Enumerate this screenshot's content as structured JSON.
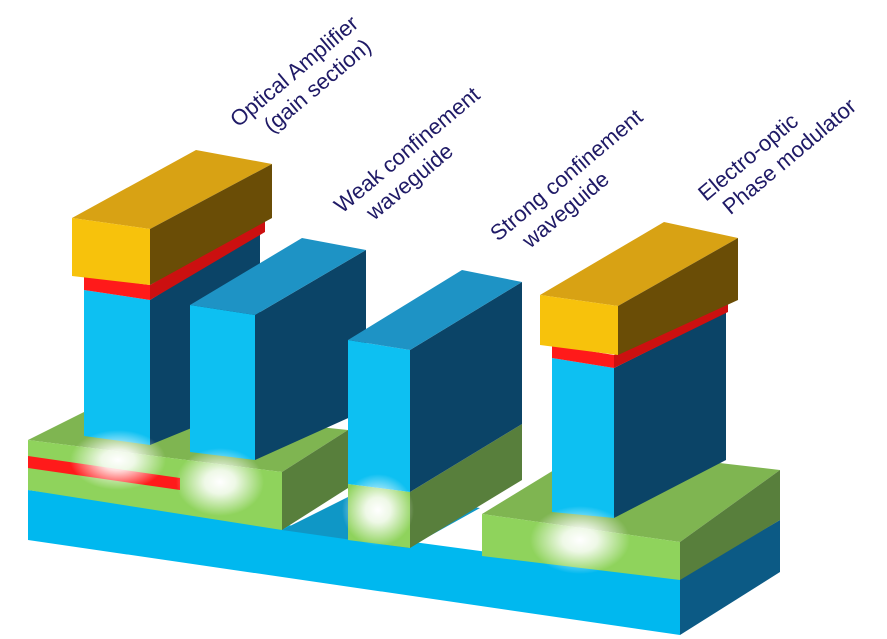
{
  "labels": {
    "amplifier_line1": "Optical Amplifier",
    "amplifier_line2": "(gain section)",
    "weak_line1": "Weak confinement",
    "weak_line2": "waveguide",
    "strong_line1": "Strong confinement",
    "strong_line2": "waveguide",
    "modulator_line1": "Electro-optic",
    "modulator_line2": "Phase modulator"
  },
  "colors": {
    "substrate_front": "#00b8ef",
    "substrate_top": "#0f97c6",
    "substrate_side": "#0c5a85",
    "green_front": "#8fd35c",
    "green_top": "#7fb551",
    "green_side": "#587f3c",
    "ridge_front": "#0dc0f2",
    "ridge_top": "#1e93c5",
    "ridge_side": "#0b4467",
    "gold_front": "#f7c20c",
    "gold_top": "#d8a214",
    "gold_side": "#6a4d06",
    "red_layer": "#ff1a1a",
    "label_text": "#1f1a66"
  }
}
